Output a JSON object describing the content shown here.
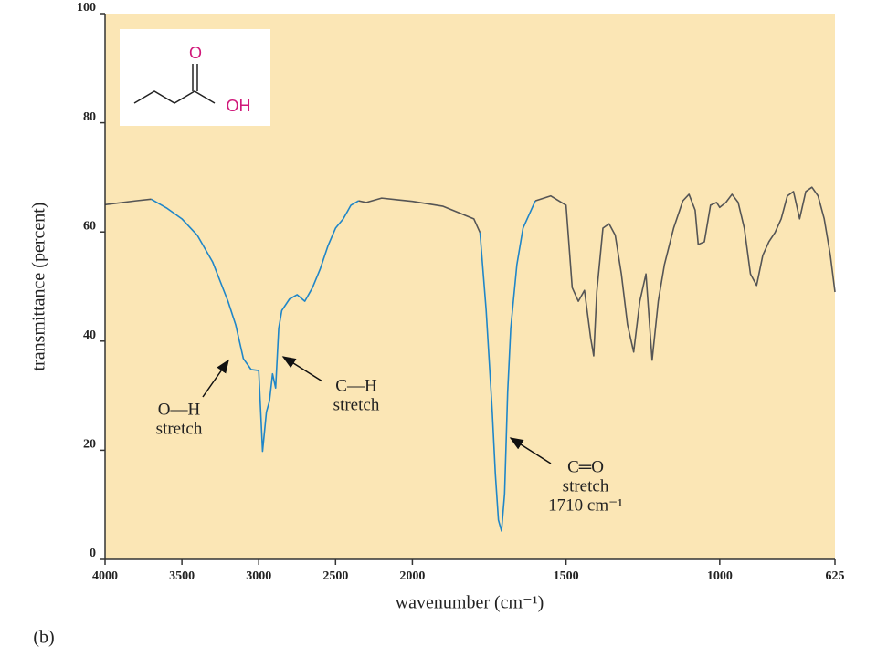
{
  "chart_data": {
    "type": "line",
    "x_label": "wavenumber (cm⁻¹)",
    "y_label": "transmittance (percent)",
    "panel_label": "(b)",
    "xlim": [
      4000,
      625
    ],
    "x_scale_break": 2000,
    "xticks": [
      4000,
      3500,
      3000,
      2500,
      2000,
      1500,
      1000,
      625
    ],
    "ylim": [
      0,
      100
    ],
    "yticks": [
      0,
      20,
      40,
      60,
      80,
      100
    ],
    "grid": false,
    "background": "#fbe6b5",
    "x": [
      4000,
      3800,
      3700,
      3600,
      3500,
      3400,
      3300,
      3200,
      3150,
      3100,
      3050,
      3000,
      2975,
      2950,
      2930,
      2910,
      2890,
      2870,
      2850,
      2800,
      2750,
      2700,
      2650,
      2600,
      2550,
      2500,
      2450,
      2400,
      2350,
      2300,
      2200,
      2100,
      2000,
      1900,
      1800,
      1780,
      1760,
      1740,
      1730,
      1720,
      1710,
      1700,
      1690,
      1680,
      1660,
      1640,
      1620,
      1600,
      1550,
      1500,
      1480,
      1460,
      1440,
      1420,
      1410,
      1400,
      1380,
      1360,
      1340,
      1320,
      1300,
      1280,
      1260,
      1240,
      1220,
      1200,
      1180,
      1150,
      1120,
      1100,
      1080,
      1070,
      1050,
      1030,
      1010,
      1000,
      980,
      960,
      940,
      920,
      900,
      880,
      860,
      840,
      820,
      800,
      780,
      760,
      740,
      720,
      700,
      680,
      660,
      640,
      625
    ],
    "series": [
      {
        "color": "#555555",
        "values": [
          65,
          65.7,
          66,
          null,
          null,
          null,
          null,
          null,
          null,
          null,
          null,
          null,
          null,
          null,
          null,
          null,
          null,
          null,
          null,
          null,
          null,
          null,
          null,
          null,
          null,
          null,
          null,
          null,
          65.7,
          65.4,
          66.2,
          65.9,
          65.6,
          64.7,
          62.4,
          59.9,
          null,
          null,
          null,
          null,
          null,
          null,
          null,
          null,
          null,
          null,
          null,
          65.7,
          66.6,
          64.9,
          49.8,
          47.3,
          49.3,
          40.6,
          37.3,
          49,
          60.7,
          61.5,
          59.4,
          52.3,
          43,
          38,
          47.3,
          52.3,
          36.5,
          47.3,
          54,
          60.7,
          65.7,
          66.9,
          64,
          57.7,
          58.2,
          64.9,
          65.4,
          64.5,
          65.4,
          66.9,
          65.4,
          60.7,
          52.3,
          50.2,
          55.7,
          58.2,
          59.9,
          62.4,
          66.6,
          67.4,
          62.4,
          67.4,
          68.2,
          66.6,
          62.4,
          55.7,
          49
        ]
      },
      {
        "color": "#1f86c8",
        "values": [
          null,
          null,
          66,
          64.4,
          62.4,
          59.4,
          54.5,
          47.3,
          43,
          36.8,
          34.8,
          34.6,
          19.8,
          27,
          29,
          34,
          31.4,
          42.3,
          45.6,
          47.7,
          48.5,
          47.3,
          49.8,
          53.2,
          57.4,
          60.7,
          62.4,
          64.9,
          65.7,
          null,
          null,
          null,
          null,
          null,
          null,
          59.9,
          45.7,
          27,
          15.6,
          7.2,
          5.2,
          12,
          30.6,
          42.3,
          54,
          60.7,
          63.2,
          65.7,
          null,
          null,
          null,
          null,
          null,
          null,
          null,
          null,
          null,
          null,
          null,
          null,
          null,
          null,
          null,
          null,
          null,
          null,
          null,
          null,
          null,
          null,
          null,
          null,
          null,
          null,
          null,
          null,
          null,
          null,
          null,
          null,
          null,
          null,
          null,
          null,
          null,
          null,
          null,
          null,
          null,
          null,
          null,
          null,
          null,
          null,
          null
        ]
      }
    ],
    "annotations": [
      {
        "lines": [
          "O—H",
          "stretch"
        ]
      },
      {
        "lines": [
          "C—H",
          "stretch"
        ]
      },
      {
        "lines": [
          "C═O",
          "stretch",
          "1710 cm⁻¹"
        ]
      }
    ],
    "inset": {
      "labels": [
        "O",
        "OH"
      ]
    }
  }
}
